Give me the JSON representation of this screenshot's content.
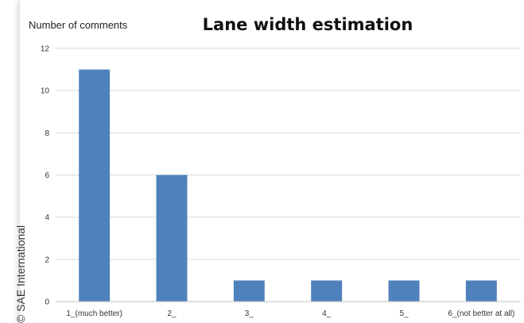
{
  "credit": "© SAE International",
  "chart_data": {
    "type": "bar",
    "title": "Lane width estimation",
    "ylabel": "Number of comments",
    "xlabel": "",
    "categories": [
      "1_(much better)",
      "2_",
      "3_",
      "4_",
      "5_",
      "6_(not better at all)"
    ],
    "values": [
      11,
      6,
      1,
      1,
      1,
      1
    ],
    "ylim": [
      0,
      12
    ],
    "yticks": [
      0,
      2,
      4,
      6,
      8,
      10,
      12
    ],
    "grid": true,
    "legend": "none",
    "bar_color": "#4f81bd",
    "grid_color": "#d9d9d9"
  }
}
